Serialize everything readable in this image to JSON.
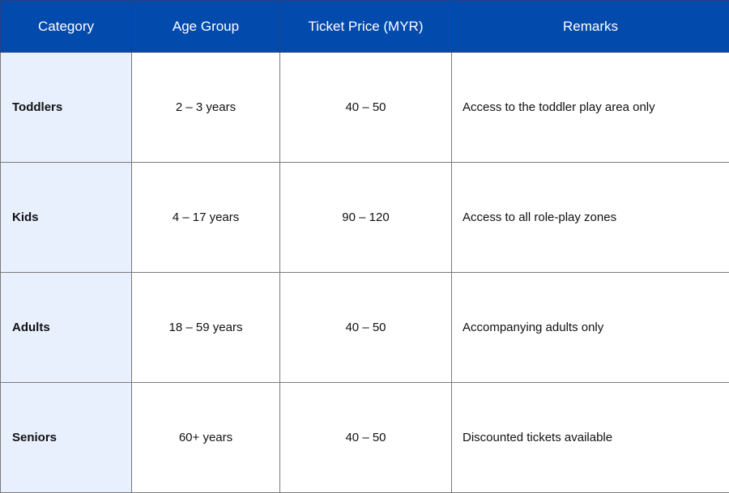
{
  "headers": [
    "Category",
    "Age Group",
    "Ticket Price (MYR)",
    "Remarks"
  ],
  "rows": [
    {
      "category": "Toddlers",
      "age_group": "2 – 3 years",
      "price": "40 – 50",
      "remarks": "Access to the toddler play area only"
    },
    {
      "category": "Kids",
      "age_group": "4 – 17 years",
      "price": "90 – 120",
      "remarks": "Access to all role-play zones"
    },
    {
      "category": "Adults",
      "age_group": "18 – 59 years",
      "price": "40 – 50",
      "remarks": "Accompanying adults only"
    },
    {
      "category": "Seniors",
      "age_group": "60+ years",
      "price": "40 – 50",
      "remarks": "Discounted tickets available"
    }
  ],
  "colors": {
    "header_bg": "#034aad",
    "header_text": "#ffffff",
    "category_bg": "#e8f0fe"
  }
}
